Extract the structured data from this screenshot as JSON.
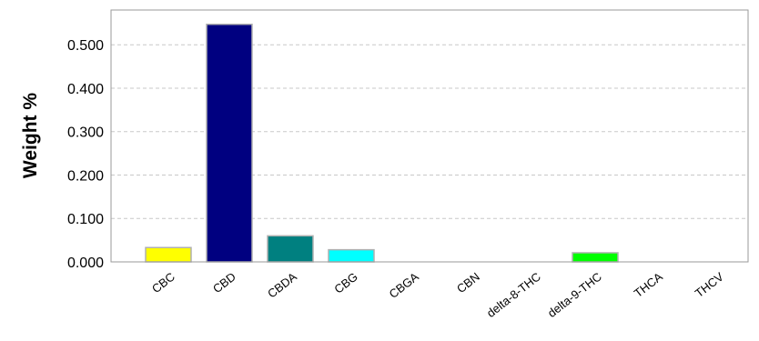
{
  "chart_data": {
    "type": "bar",
    "title": "",
    "xlabel": "",
    "ylabel": "Weight %",
    "ylim": [
      0,
      0.58
    ],
    "yticks": [
      "0.000",
      "0.100",
      "0.200",
      "0.300",
      "0.400",
      "0.500"
    ],
    "ytick_values": [
      0,
      0.1,
      0.2,
      0.3,
      0.4,
      0.5
    ],
    "grid": true,
    "categories": [
      "CBC",
      "CBD",
      "CBDA",
      "CBG",
      "CBGA",
      "CBN",
      "delta-8-THC",
      "delta-9-THC",
      "THCA",
      "THCV"
    ],
    "values": [
      0.033,
      0.547,
      0.06,
      0.028,
      0,
      0,
      0,
      0.021,
      0,
      0
    ],
    "colors": [
      "#ffff00",
      "#000080",
      "#008080",
      "#00ffff",
      "#cccccc",
      "#cccccc",
      "#cccccc",
      "#00ff00",
      "#cccccc",
      "#cccccc"
    ]
  }
}
